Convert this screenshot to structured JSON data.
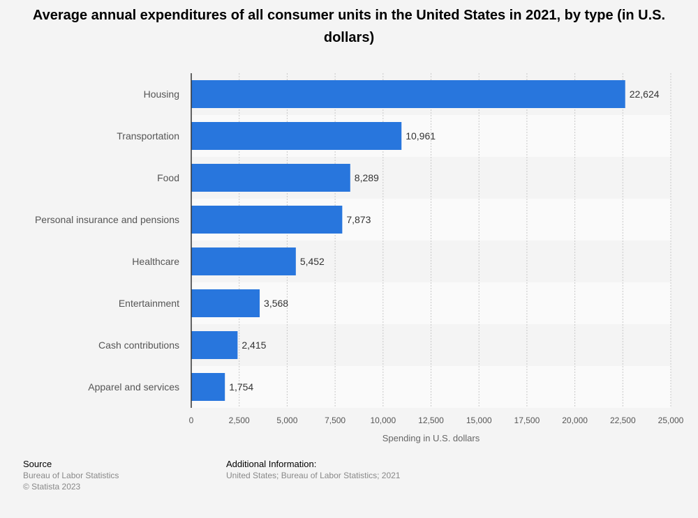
{
  "title": "Average annual expenditures of all consumer units in the United States in 2021, by type (in U.S. dollars)",
  "chart_data": {
    "type": "bar",
    "orientation": "horizontal",
    "title": "Average annual expenditures of all consumer units in the United States in 2021, by type (in U.S. dollars)",
    "xlabel": "Spending in U.S. dollars",
    "ylabel": "",
    "categories": [
      "Housing",
      "Transportation",
      "Food",
      "Personal insurance and pensions",
      "Healthcare",
      "Entertainment",
      "Cash contributions",
      "Apparel and services"
    ],
    "values": [
      22624,
      10961,
      8289,
      7873,
      5452,
      3568,
      2415,
      1754
    ],
    "value_labels": [
      "22,624",
      "10,961",
      "8,289",
      "7,873",
      "5,452",
      "3,568",
      "2,415",
      "1,754"
    ],
    "xlim": [
      0,
      25000
    ],
    "xticks": [
      0,
      2500,
      5000,
      7500,
      10000,
      12500,
      15000,
      17500,
      20000,
      22500,
      25000
    ],
    "xtick_labels": [
      "0",
      "2,500",
      "5,000",
      "7,500",
      "10,000",
      "12,500",
      "15,000",
      "17,500",
      "20,000",
      "22,500",
      "25,000"
    ],
    "grid": true,
    "bar_color": "#2876dd"
  },
  "footer": {
    "source_heading": "Source",
    "source_lines": [
      "Bureau of Labor Statistics",
      "© Statista 2023"
    ],
    "info_heading": "Additional Information:",
    "info_lines": [
      "United States; Bureau of Labor Statistics; 2021"
    ]
  }
}
